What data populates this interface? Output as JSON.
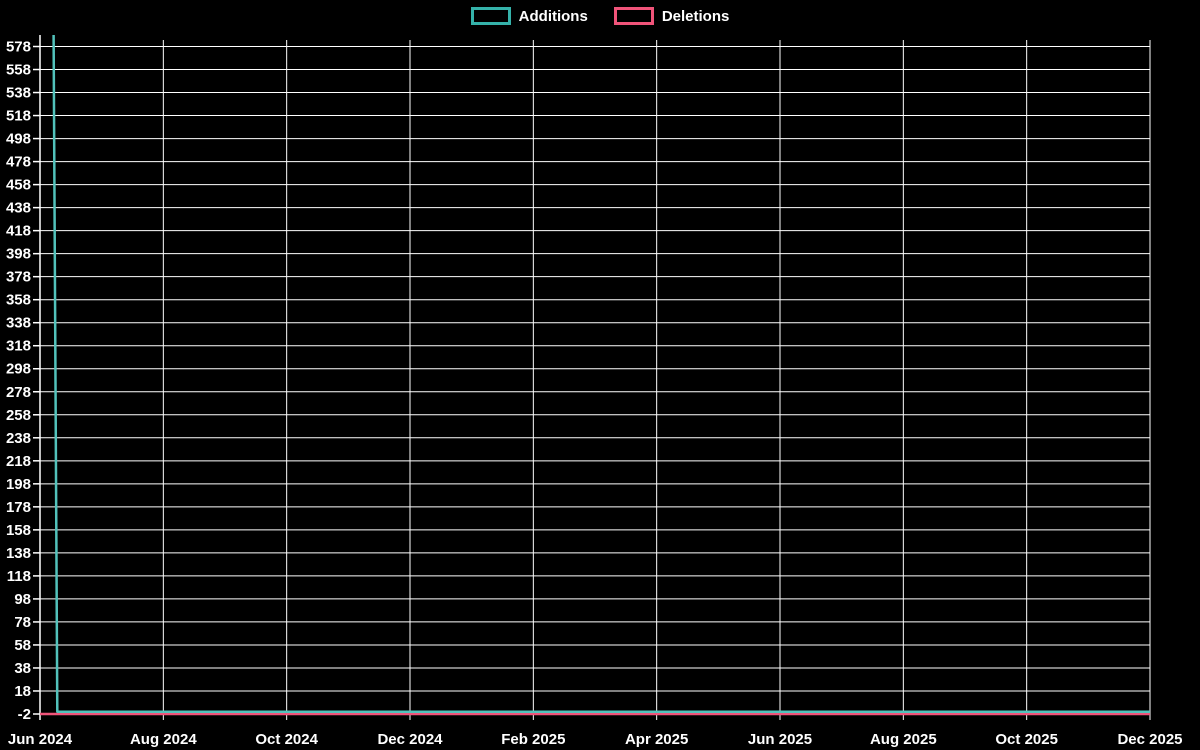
{
  "legend": {
    "items": [
      {
        "label": "Additions",
        "color": "#35b2aa"
      },
      {
        "label": "Deletions",
        "color": "#f0547a"
      }
    ]
  },
  "chart_data": {
    "type": "line",
    "title": "",
    "xlabel": "",
    "ylabel": "",
    "background_color": "#000000",
    "gridline_color": "#ffffff",
    "axis_text_color": "#ffffff",
    "grid": true,
    "legend_position": "top-center",
    "xlim_months_from_jun_2024": [
      0,
      18
    ],
    "ylim": [
      -2,
      588
    ],
    "x_ticks": [
      {
        "label": "Jun 2024",
        "t": 0
      },
      {
        "label": "Aug 2024",
        "t": 2
      },
      {
        "label": "Oct 2024",
        "t": 4
      },
      {
        "label": "Dec 2024",
        "t": 6
      },
      {
        "label": "Feb 2025",
        "t": 8
      },
      {
        "label": "Apr 2025",
        "t": 10
      },
      {
        "label": "Jun 2025",
        "t": 12
      },
      {
        "label": "Aug 2025",
        "t": 14
      },
      {
        "label": "Oct 2025",
        "t": 16
      },
      {
        "label": "Dec 2025",
        "t": 18
      }
    ],
    "y_ticks": [
      -2,
      18,
      38,
      58,
      78,
      98,
      118,
      138,
      158,
      178,
      198,
      218,
      238,
      258,
      278,
      298,
      318,
      338,
      358,
      378,
      398,
      418,
      438,
      458,
      478,
      498,
      518,
      538,
      558,
      578
    ],
    "series": [
      {
        "name": "Deletions",
        "color": "#f0547a",
        "stroke_width": 2.5,
        "points": [
          [
            0,
            -2
          ],
          [
            18,
            -2
          ]
        ]
      },
      {
        "name": "Additions",
        "color": "#52c2bb",
        "stroke_width": 2.5,
        "points": [
          [
            0.22,
            588
          ],
          [
            0.28,
            0
          ],
          [
            18,
            0
          ]
        ]
      }
    ]
  }
}
